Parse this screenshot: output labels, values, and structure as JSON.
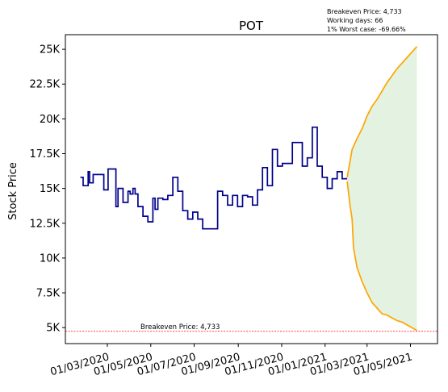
{
  "chart_data": {
    "type": "line",
    "title": "POT",
    "xlabel": "",
    "ylabel": "Stock Price",
    "ylim": [
      3850,
      26050
    ],
    "x_tick_labels": [
      "01/03/2020",
      "01/05/2020",
      "01/07/2020",
      "01/09/2020",
      "01/11/2020",
      "01/01/2021",
      "01/03/2021",
      "01/05/2021"
    ],
    "y_ticks": [
      {
        "value": 5000,
        "label": "5K"
      },
      {
        "value": 7500,
        "label": "7.5K"
      },
      {
        "value": 10000,
        "label": "10K"
      },
      {
        "value": 12500,
        "label": "12.5K"
      },
      {
        "value": 15000,
        "label": "15K"
      },
      {
        "value": 17500,
        "label": "17.5K"
      },
      {
        "value": 20000,
        "label": "20K"
      },
      {
        "value": 22500,
        "label": "22.5K"
      },
      {
        "value": 25000,
        "label": "25K"
      }
    ],
    "info_lines": [
      "Breakeven Price: 4,733",
      "Working days: 66",
      "1% Worst case: -69.66%"
    ],
    "breakeven": {
      "value": 4733,
      "label": "Breakeven Price: 4,733",
      "color": "#ff0000"
    },
    "colors": {
      "history": "#00008b",
      "projection": "#ffa500",
      "band": "#e3f2e1"
    },
    "history": {
      "name": "",
      "x": [
        "2020-01-23",
        "2020-01-27",
        "2020-02-03",
        "2020-02-05",
        "2020-02-10",
        "2020-02-17",
        "2020-02-25",
        "2020-03-02",
        "2020-03-09",
        "2020-03-13",
        "2020-03-16",
        "2020-03-23",
        "2020-03-30",
        "2020-04-02",
        "2020-04-06",
        "2020-04-09",
        "2020-04-13",
        "2020-04-20",
        "2020-04-27",
        "2020-05-04",
        "2020-05-07",
        "2020-05-11",
        "2020-05-18",
        "2020-05-25",
        "2020-06-01",
        "2020-06-08",
        "2020-06-15",
        "2020-06-22",
        "2020-06-29",
        "2020-07-06",
        "2020-07-13",
        "2020-07-20",
        "2020-07-27",
        "2020-08-03",
        "2020-08-10",
        "2020-08-17",
        "2020-08-24",
        "2020-08-31",
        "2020-09-07",
        "2020-09-14",
        "2020-09-21",
        "2020-09-28",
        "2020-10-05",
        "2020-10-12",
        "2020-10-19",
        "2020-10-26",
        "2020-11-02",
        "2020-11-09",
        "2020-11-16",
        "2020-11-23",
        "2020-11-30",
        "2020-12-07",
        "2020-12-14",
        "2020-12-21",
        "2020-12-28",
        "2021-01-04",
        "2021-01-11",
        "2021-01-18",
        "2021-01-25",
        "2021-02-01"
      ],
      "y": [
        15800,
        15200,
        16200,
        15400,
        16000,
        16000,
        14900,
        16400,
        16400,
        13700,
        15000,
        14000,
        14800,
        14600,
        15000,
        14600,
        13700,
        13000,
        12600,
        14300,
        13500,
        14300,
        14200,
        14500,
        15800,
        14800,
        13400,
        12800,
        13300,
        12800,
        12100,
        12100,
        12100,
        14800,
        14500,
        13800,
        14500,
        13700,
        14500,
        14400,
        13800,
        14900,
        16500,
        15200,
        17800,
        16600,
        16800,
        16800,
        18300,
        18300,
        16600,
        17200,
        19400,
        16600,
        15800,
        15000,
        15700,
        16200,
        15700,
        15700
      ]
    },
    "projection_upper": {
      "x": [
        "2021-02-01",
        "2021-02-08",
        "2021-02-15",
        "2021-02-22",
        "2021-03-01",
        "2021-03-08",
        "2021-03-15",
        "2021-03-22",
        "2021-03-29",
        "2021-04-05",
        "2021-04-12",
        "2021-04-19",
        "2021-04-26",
        "2021-05-03",
        "2021-05-10"
      ],
      "y": [
        15800,
        17800,
        18600,
        19300,
        20200,
        20900,
        21400,
        22000,
        22600,
        23100,
        23600,
        24000,
        24400,
        24800,
        25200
      ]
    },
    "projection_lower": {
      "x": [
        "2021-02-01",
        "2021-02-05",
        "2021-02-08",
        "2021-02-10",
        "2021-02-15",
        "2021-02-22",
        "2021-03-01",
        "2021-03-08",
        "2021-03-15",
        "2021-03-22",
        "2021-03-29",
        "2021-04-05",
        "2021-04-12",
        "2021-04-19",
        "2021-04-26",
        "2021-05-03",
        "2021-05-10"
      ],
      "y": [
        15500,
        13800,
        12800,
        10700,
        9300,
        8300,
        7500,
        6800,
        6400,
        6000,
        5900,
        5700,
        5500,
        5400,
        5200,
        5000,
        4800
      ]
    }
  }
}
